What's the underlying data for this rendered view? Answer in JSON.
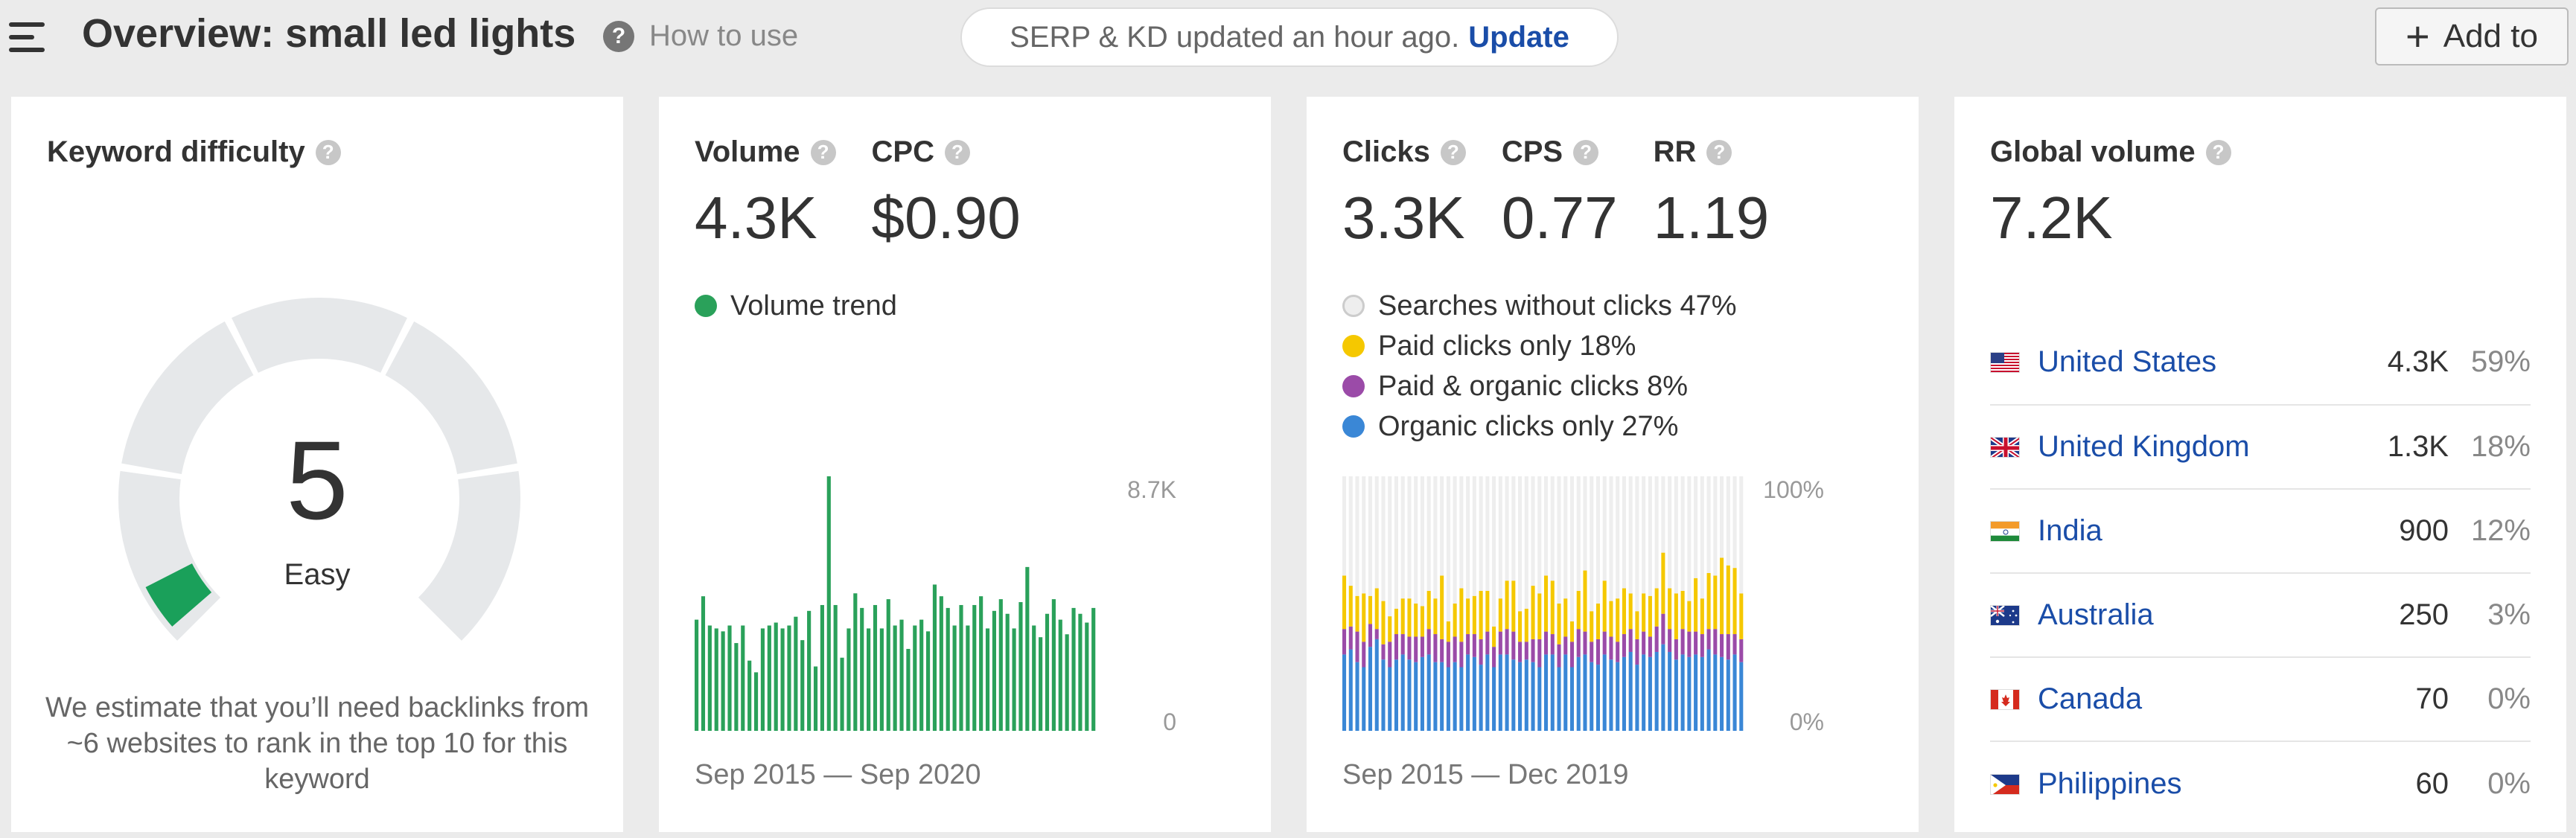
{
  "header": {
    "title": "Overview: small led lights",
    "help_label": "How to use",
    "serp_text": "SERP & KD updated an hour ago.",
    "update_label": "Update",
    "add_label": "Add to"
  },
  "kd_card": {
    "title": "Keyword difficulty",
    "value": "5",
    "level": "Easy",
    "score_fraction": 0.05,
    "gauge_color": "#1aa05a",
    "description": "We estimate that you’ll need backlinks from ~6 websites to rank in the top 10 for this keyword"
  },
  "volume_card": {
    "volume_label": "Volume",
    "volume_value": "4.3K",
    "cpc_label": "CPC",
    "cpc_value": "$0.90",
    "legend_label": "Volume trend",
    "legend_color": "#2aa15a",
    "y_max_label": "8.7K",
    "y_min_label": "0",
    "date_range": "Sep 2015 — Sep 2020"
  },
  "clicks_card": {
    "clicks_label": "Clicks",
    "clicks_value": "3.3K",
    "cps_label": "CPS",
    "cps_value": "0.77",
    "rr_label": "RR",
    "rr_value": "1.19",
    "legend": [
      {
        "label": "Searches without clicks 47%",
        "color": "#eeeeee"
      },
      {
        "label": "Paid clicks only 18%",
        "color": "#f5c800"
      },
      {
        "label": "Paid & organic clicks 8%",
        "color": "#9b4ba8"
      },
      {
        "label": "Organic clicks only 27%",
        "color": "#3a87d6"
      }
    ],
    "y_max_label": "100%",
    "y_min_label": "0%",
    "date_range": "Sep 2015 — Dec 2019"
  },
  "global_card": {
    "title": "Global volume",
    "value": "7.2K",
    "countries": [
      {
        "name": "United States",
        "volume": "4.3K",
        "pct": "59%",
        "flag": "us"
      },
      {
        "name": "United Kingdom",
        "volume": "1.3K",
        "pct": "18%",
        "flag": "uk"
      },
      {
        "name": "India",
        "volume": "900",
        "pct": "12%",
        "flag": "in"
      },
      {
        "name": "Australia",
        "volume": "250",
        "pct": "3%",
        "flag": "au"
      },
      {
        "name": "Canada",
        "volume": "70",
        "pct": "0%",
        "flag": "ca"
      },
      {
        "name": "Philippines",
        "volume": "60",
        "pct": "0%",
        "flag": "ph"
      }
    ]
  },
  "chart_data": [
    {
      "type": "bar",
      "ylim": [
        0,
        8700
      ],
      "series": [
        {
          "values": [
            3800,
            4600,
            3600,
            3500,
            3400,
            3600,
            3000,
            3600,
            2400,
            2000,
            3500,
            3600,
            3700,
            3500,
            3600,
            3900,
            3100,
            4100,
            2200,
            4300,
            8700,
            4300,
            2500,
            3500,
            4700,
            4200,
            3500,
            4300,
            3500,
            4500,
            3600,
            3800,
            2800,
            3600,
            3800,
            3400,
            5000,
            4600,
            4200,
            3600,
            4300,
            3600,
            4300,
            4600,
            3500,
            4100,
            4500,
            4000,
            3500,
            4400,
            5600,
            3600,
            3200,
            4000,
            4500,
            3800,
            3300,
            4200,
            4000,
            3700,
            4200
          ]
        }
      ]
    },
    {
      "type": "bar",
      "stacked": true,
      "ylim": [
        0,
        100
      ],
      "series": [
        {
          "name": "Organic clicks only",
          "values": [
            30,
            32,
            27,
            25,
            33,
            36,
            28,
            25,
            28,
            30,
            28,
            27,
            29,
            30,
            27,
            27,
            25,
            27,
            25,
            30,
            29,
            26,
            30,
            25,
            30,
            30,
            28,
            27,
            28,
            27,
            25,
            30,
            30,
            25,
            30,
            25,
            29,
            30,
            27,
            26,
            30,
            28,
            27,
            29,
            31,
            26,
            30,
            29,
            31,
            34,
            31,
            28,
            30,
            29,
            30,
            29,
            32,
            30,
            29,
            28,
            30,
            27
          ]
        },
        {
          "name": "Paid & organic clicks",
          "values": [
            10,
            9,
            12,
            10,
            9,
            4,
            6,
            10,
            10,
            8,
            9,
            10,
            8,
            10,
            11,
            9,
            10,
            10,
            10,
            8,
            9,
            10,
            9,
            8,
            9,
            10,
            11,
            8,
            7,
            9,
            11,
            9,
            8,
            9,
            7,
            10,
            11,
            9,
            8,
            10,
            9,
            9,
            8,
            9,
            9,
            10,
            9,
            8,
            10,
            12,
            9,
            8,
            10,
            10,
            9,
            9,
            8,
            10,
            9,
            10,
            8,
            9
          ]
        },
        {
          "name": "Paid clicks only",
          "values": [
            21,
            16,
            14,
            19,
            11,
            16,
            17,
            10,
            10,
            14,
            15,
            13,
            12,
            15,
            14,
            25,
            8,
            13,
            21,
            14,
            15,
            19,
            16,
            8,
            13,
            19,
            20,
            12,
            13,
            21,
            18,
            22,
            21,
            16,
            15,
            8,
            15,
            24,
            12,
            14,
            20,
            14,
            17,
            18,
            14,
            11,
            15,
            16,
            15,
            24,
            16,
            18,
            15,
            12,
            21,
            14,
            22,
            21,
            30,
            27,
            26,
            18
          ]
        },
        {
          "name": "Searches without clicks",
          "values": [
            39,
            43,
            47,
            46,
            47,
            44,
            49,
            55,
            52,
            48,
            48,
            50,
            51,
            45,
            48,
            39,
            57,
            50,
            44,
            48,
            47,
            45,
            45,
            59,
            48,
            41,
            41,
            53,
            52,
            43,
            46,
            39,
            41,
            50,
            48,
            57,
            45,
            37,
            53,
            50,
            41,
            49,
            48,
            44,
            46,
            53,
            46,
            47,
            44,
            30,
            44,
            46,
            45,
            49,
            40,
            48,
            38,
            39,
            32,
            35,
            36,
            46
          ]
        }
      ]
    }
  ]
}
